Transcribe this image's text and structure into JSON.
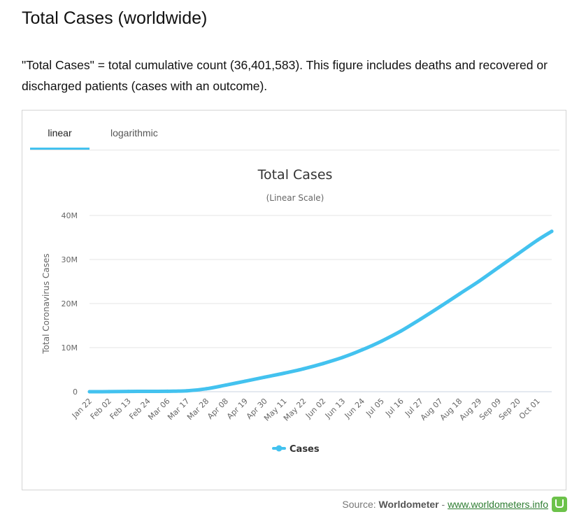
{
  "page": {
    "title": "Total Cases (worldwide)",
    "description": "\"Total Cases\" = total cumulative count (36,401,583). This figure includes deaths and recovered or discharged patients (cases with an outcome)."
  },
  "tabs": [
    {
      "label": "linear",
      "active": true
    },
    {
      "label": "logarithmic",
      "active": false
    }
  ],
  "colors": {
    "series": "#43c2ef",
    "tab_underline": "#43c2ef",
    "grid": "#e6e6e6",
    "logo": "#6cc24a",
    "link": "#2e7d32"
  },
  "source": {
    "prefix": "Source: ",
    "name": "Worldometer",
    "separator": " - ",
    "link_text": "www.worldometers.info",
    "logo_icon": "worldometer-logo-icon"
  },
  "chart_data": {
    "type": "line",
    "title": "Total Cases",
    "subtitle": "(Linear Scale)",
    "xlabel": "",
    "ylabel": "Total Coronavirus Cases",
    "ylim": [
      0,
      40000000
    ],
    "yticks": [
      0,
      10000000,
      20000000,
      30000000,
      40000000
    ],
    "ytick_labels": [
      "0",
      "10M",
      "20M",
      "30M",
      "40M"
    ],
    "grid": true,
    "legend": "bottom-center",
    "categories": [
      "Jan 22",
      "Feb 02",
      "Feb 13",
      "Feb 24",
      "Mar 06",
      "Mar 17",
      "Mar 28",
      "Apr 08",
      "Apr 19",
      "Apr 30",
      "May 11",
      "May 22",
      "Jun 02",
      "Jun 13",
      "Jun 24",
      "Jul 05",
      "Jul 16",
      "Jul 27",
      "Aug 07",
      "Aug 18",
      "Aug 29",
      "Sep 09",
      "Sep 20",
      "Oct 01"
    ],
    "series": [
      {
        "name": "Cases",
        "x": [
          "Jan 22",
          "Feb 02",
          "Feb 13",
          "Feb 24",
          "Mar 06",
          "Mar 17",
          "Mar 28",
          "Apr 08",
          "Apr 19",
          "Apr 30",
          "May 11",
          "May 22",
          "Jun 02",
          "Jun 13",
          "Jun 24",
          "Jul 05",
          "Jul 16",
          "Jul 27",
          "Aug 07",
          "Aug 18",
          "Aug 29",
          "Sep 09",
          "Sep 20",
          "Oct 01",
          "Oct 09"
        ],
        "values": [
          600,
          17000,
          60000,
          80000,
          102000,
          200000,
          660000,
          1500000,
          2400000,
          3300000,
          4200000,
          5200000,
          6400000,
          7800000,
          9500000,
          11500000,
          13800000,
          16500000,
          19300000,
          22200000,
          25100000,
          28200000,
          31300000,
          34400000,
          36401583
        ]
      }
    ]
  }
}
